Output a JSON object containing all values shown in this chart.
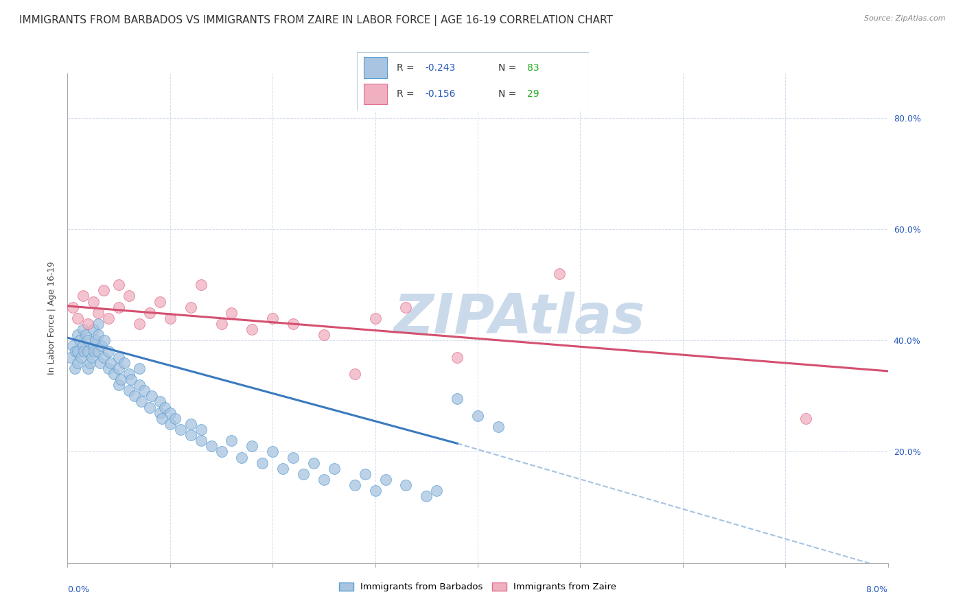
{
  "title": "IMMIGRANTS FROM BARBADOS VS IMMIGRANTS FROM ZAIRE IN LABOR FORCE | AGE 16-19 CORRELATION CHART",
  "source": "Source: ZipAtlas.com",
  "ylabel": "In Labor Force | Age 16-19",
  "xlim": [
    0.0,
    0.08
  ],
  "ylim": [
    0.0,
    0.88
  ],
  "color_barbados_fill": "#a8c4e0",
  "color_barbados_edge": "#5a9fd4",
  "color_barbados_line": "#3a7abf",
  "color_zaire_fill": "#f0b0bf",
  "color_zaire_edge": "#e07090",
  "color_zaire_line": "#d45070",
  "color_r_value": "#2255bb",
  "color_n_value": "#22aa22",
  "background_color": "#ffffff",
  "grid_color": "#c8d4e8",
  "watermark_color": "#c8d8ea",
  "watermark_text": "ZIPAtlas",
  "title_fontsize": 11,
  "axis_label_fontsize": 9,
  "tick_fontsize": 9,
  "legend_r_barbados": "-0.243",
  "legend_n_barbados": "83",
  "legend_r_zaire": "-0.156",
  "legend_n_zaire": "29",
  "trend_barbados_x0": 0.0,
  "trend_barbados_y0": 0.405,
  "trend_barbados_x1": 0.038,
  "trend_barbados_y1": 0.215,
  "trend_barbados_dash_x1": 0.08,
  "trend_barbados_dash_y1": -0.01,
  "trend_zaire_x0": 0.0,
  "trend_zaire_y0": 0.462,
  "trend_zaire_x1": 0.08,
  "trend_zaire_y1": 0.345,
  "barbados_x": [
    0.0003,
    0.0005,
    0.0007,
    0.0008,
    0.001,
    0.001,
    0.001,
    0.0012,
    0.0013,
    0.0015,
    0.0015,
    0.0016,
    0.0018,
    0.002,
    0.002,
    0.002,
    0.0022,
    0.0024,
    0.0025,
    0.0025,
    0.0026,
    0.0027,
    0.003,
    0.003,
    0.003,
    0.0032,
    0.0033,
    0.0035,
    0.0036,
    0.004,
    0.004,
    0.0042,
    0.0045,
    0.005,
    0.005,
    0.005,
    0.0052,
    0.0055,
    0.006,
    0.006,
    0.0062,
    0.0065,
    0.007,
    0.007,
    0.0072,
    0.0075,
    0.008,
    0.0082,
    0.009,
    0.009,
    0.0092,
    0.0095,
    0.01,
    0.01,
    0.0105,
    0.011,
    0.012,
    0.012,
    0.013,
    0.013,
    0.014,
    0.015,
    0.016,
    0.017,
    0.018,
    0.019,
    0.02,
    0.021,
    0.022,
    0.023,
    0.024,
    0.025,
    0.026,
    0.028,
    0.029,
    0.03,
    0.031,
    0.033,
    0.035,
    0.036,
    0.038,
    0.04,
    0.042
  ],
  "barbados_y": [
    0.37,
    0.39,
    0.35,
    0.38,
    0.41,
    0.38,
    0.36,
    0.4,
    0.37,
    0.42,
    0.39,
    0.38,
    0.41,
    0.38,
    0.35,
    0.4,
    0.36,
    0.37,
    0.39,
    0.42,
    0.38,
    0.4,
    0.41,
    0.43,
    0.38,
    0.36,
    0.39,
    0.37,
    0.4,
    0.35,
    0.38,
    0.36,
    0.34,
    0.37,
    0.32,
    0.35,
    0.33,
    0.36,
    0.31,
    0.34,
    0.33,
    0.3,
    0.32,
    0.35,
    0.29,
    0.31,
    0.28,
    0.3,
    0.27,
    0.29,
    0.26,
    0.28,
    0.25,
    0.27,
    0.26,
    0.24,
    0.23,
    0.25,
    0.22,
    0.24,
    0.21,
    0.2,
    0.22,
    0.19,
    0.21,
    0.18,
    0.2,
    0.17,
    0.19,
    0.16,
    0.18,
    0.15,
    0.17,
    0.14,
    0.16,
    0.13,
    0.15,
    0.14,
    0.12,
    0.13,
    0.295,
    0.265,
    0.245
  ],
  "zaire_x": [
    0.0005,
    0.001,
    0.0015,
    0.002,
    0.0025,
    0.003,
    0.0035,
    0.004,
    0.005,
    0.005,
    0.006,
    0.007,
    0.008,
    0.009,
    0.01,
    0.012,
    0.013,
    0.015,
    0.016,
    0.018,
    0.02,
    0.022,
    0.025,
    0.028,
    0.03,
    0.033,
    0.038,
    0.048,
    0.072
  ],
  "zaire_y": [
    0.46,
    0.44,
    0.48,
    0.43,
    0.47,
    0.45,
    0.49,
    0.44,
    0.5,
    0.46,
    0.48,
    0.43,
    0.45,
    0.47,
    0.44,
    0.46,
    0.5,
    0.43,
    0.45,
    0.42,
    0.44,
    0.43,
    0.41,
    0.34,
    0.44,
    0.46,
    0.37,
    0.52,
    0.26
  ]
}
